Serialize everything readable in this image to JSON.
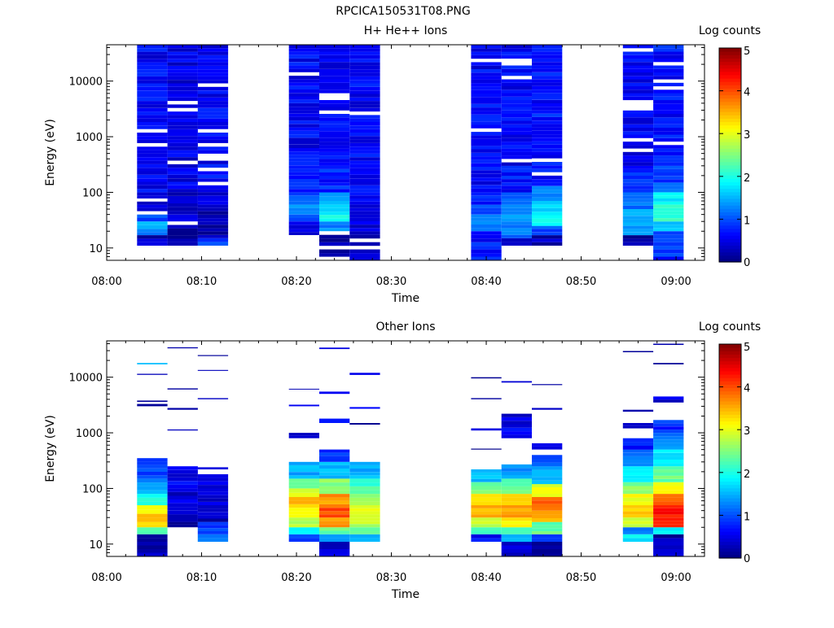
{
  "figure_title": "RPCICA150531T08.PNG",
  "chart_data": [
    {
      "type": "heatmap",
      "title": "H+ He++ Ions",
      "xlabel": "Time",
      "ylabel": "Energy (eV)",
      "colorbar_label": "Log counts",
      "x_range": [
        "08:00",
        "09:03"
      ],
      "xticks": [
        "08:00",
        "08:10",
        "08:20",
        "08:30",
        "08:40",
        "08:50",
        "09:00"
      ],
      "y_scale": "log",
      "y_range": [
        6,
        45000
      ],
      "yticks": [
        "10",
        "100",
        "1000",
        "10000"
      ],
      "colorbar_range": [
        0,
        5
      ],
      "colorbar_ticks": [
        "0",
        "1",
        "2",
        "3",
        "4",
        "5"
      ],
      "columns": [
        {
          "t0": "08:03.2",
          "t1": "08:06.4",
          "emin": 11,
          "bands": [
            [
              11,
              17,
              0.3
            ],
            [
              17,
              22,
              1.2
            ],
            [
              22,
              30,
              1.5
            ],
            [
              30,
              40,
              1.0
            ],
            [
              40,
              60,
              0.6
            ],
            [
              60,
              100,
              0.5
            ],
            [
              100,
              45000,
              0.6
            ]
          ]
        },
        {
          "t0": "08:06.4",
          "t1": "08:09.6",
          "emin": 11,
          "bands": [
            [
              11,
              30,
              0.3
            ],
            [
              30,
              40,
              0.5
            ],
            [
              40,
              100,
              0.4
            ],
            [
              100,
              45000,
              0.5
            ]
          ]
        },
        {
          "t0": "08:09.6",
          "t1": "08:12.8",
          "emin": 11,
          "bands": [
            [
              11,
              15,
              0.9
            ],
            [
              15,
              60,
              0.3
            ],
            [
              60,
              100,
              0.5
            ],
            [
              100,
              45000,
              0.6
            ]
          ]
        },
        {
          "t0": "08:19.2",
          "t1": "08:22.4",
          "emin": 17,
          "bands": [
            [
              17,
              22,
              0.6
            ],
            [
              22,
              30,
              0.5
            ],
            [
              30,
              40,
              0.9
            ],
            [
              40,
              60,
              1.4
            ],
            [
              60,
              100,
              1.0
            ],
            [
              100,
              200,
              0.8
            ],
            [
              200,
              45000,
              0.6
            ]
          ]
        },
        {
          "t0": "08:22.4",
          "t1": "08:25.6",
          "emin": 6,
          "bands": [
            [
              6,
              20,
              0.2
            ],
            [
              20,
              30,
              1.3
            ],
            [
              30,
              45,
              1.9
            ],
            [
              45,
              70,
              1.7
            ],
            [
              70,
              100,
              1.3
            ],
            [
              100,
              300,
              0.8
            ],
            [
              300,
              45000,
              0.6
            ]
          ]
        },
        {
          "t0": "08:25.6",
          "t1": "08:28.8",
          "emin": 6,
          "bands": [
            [
              6,
              20,
              0.3
            ],
            [
              20,
              60,
              0.4
            ],
            [
              60,
              100,
              0.6
            ],
            [
              100,
              45000,
              0.6
            ]
          ]
        },
        {
          "t0": "08:38.4",
          "t1": "08:41.6",
          "emin": 6,
          "bands": [
            [
              6,
              20,
              0.7
            ],
            [
              20,
              40,
              1.3
            ],
            [
              40,
              60,
              1.0
            ],
            [
              60,
              100,
              0.8
            ],
            [
              100,
              250,
              0.6
            ],
            [
              250,
              45000,
              0.6
            ]
          ]
        },
        {
          "t0": "08:41.6",
          "t1": "08:44.8",
          "emin": 11,
          "bands": [
            [
              11,
              15,
              0.3
            ],
            [
              15,
              30,
              1.2
            ],
            [
              30,
              60,
              1.4
            ],
            [
              60,
              100,
              1.0
            ],
            [
              100,
              300,
              0.7
            ],
            [
              300,
              45000,
              0.6
            ]
          ]
        },
        {
          "t0": "08:44.8",
          "t1": "08:48.0",
          "emin": 11,
          "bands": [
            [
              11,
              17,
              0.3
            ],
            [
              17,
              25,
              1.0
            ],
            [
              25,
              45,
              1.9
            ],
            [
              45,
              70,
              1.6
            ],
            [
              70,
              130,
              1.2
            ],
            [
              130,
              45000,
              0.7
            ]
          ]
        },
        {
          "t0": "08:54.4",
          "t1": "08:57.6",
          "emin": 11,
          "bands": [
            [
              11,
              17,
              0.2
            ],
            [
              17,
              25,
              1.4
            ],
            [
              25,
              50,
              1.5
            ],
            [
              50,
              100,
              1.2
            ],
            [
              100,
              300,
              0.8
            ],
            [
              300,
              45000,
              0.6
            ]
          ]
        },
        {
          "t0": "08:57.6",
          "t1": "09:00.8",
          "emin": 6,
          "bands": [
            [
              6,
              20,
              0.8
            ],
            [
              20,
              30,
              1.6
            ],
            [
              30,
              60,
              2.1
            ],
            [
              60,
              100,
              1.8
            ],
            [
              100,
              150,
              1.3
            ],
            [
              150,
              300,
              0.9
            ],
            [
              300,
              45000,
              0.7
            ]
          ]
        }
      ]
    },
    {
      "type": "heatmap",
      "title": "Other Ions",
      "xlabel": "Time",
      "ylabel": "Energy (eV)",
      "colorbar_label": "Log counts",
      "x_range": [
        "08:00",
        "09:03"
      ],
      "xticks": [
        "08:00",
        "08:10",
        "08:20",
        "08:30",
        "08:40",
        "08:50",
        "09:00"
      ],
      "y_scale": "log",
      "y_range": [
        6,
        45000
      ],
      "yticks": [
        "10",
        "100",
        "1000",
        "10000"
      ],
      "colorbar_range": [
        0,
        5
      ],
      "colorbar_ticks": [
        "0",
        "1",
        "2",
        "3",
        "4",
        "5"
      ],
      "columns": [
        {
          "t0": "08:03.2",
          "t1": "08:06.4",
          "emin": 6,
          "bands": [
            [
              6,
              11,
              0.3
            ],
            [
              11,
              15,
              0.3
            ],
            [
              15,
              20,
              2.3
            ],
            [
              20,
              25,
              3.2
            ],
            [
              25,
              35,
              3.6
            ],
            [
              35,
              50,
              3.0
            ],
            [
              50,
              80,
              2.0
            ],
            [
              80,
              150,
              1.4
            ],
            [
              150,
              350,
              1.0
            ],
            [
              3000,
              3300,
              0.3
            ],
            [
              3600,
              3800,
              0.3
            ],
            [
              11000,
              11500,
              0.3
            ],
            [
              17000,
              18000,
              1.6
            ]
          ]
        },
        {
          "t0": "08:06.4",
          "t1": "08:09.6",
          "emin": 20,
          "bands": [
            [
              20,
              25,
              0.3
            ],
            [
              25,
              40,
              0.2
            ],
            [
              40,
              100,
              0.4
            ],
            [
              100,
              250,
              0.6
            ],
            [
              1100,
              1150,
              0.3
            ],
            [
              2600,
              2800,
              0.3
            ],
            [
              6000,
              6300,
              0.3
            ],
            [
              33000,
              34500,
              0.3
            ]
          ]
        },
        {
          "t0": "08:09.6",
          "t1": "08:12.8",
          "emin": 11,
          "bands": [
            [
              11,
              15,
              1.1
            ],
            [
              15,
              25,
              0.8
            ],
            [
              25,
              50,
              0.3
            ],
            [
              50,
              100,
              0.4
            ],
            [
              100,
              180,
              0.6
            ],
            [
              220,
              240,
              0.3
            ],
            [
              4000,
              4200,
              0.3
            ],
            [
              13000,
              13500,
              0.3
            ],
            [
              24000,
              25000,
              0.3
            ]
          ]
        },
        {
          "t0": "08:19.2",
          "t1": "08:22.4",
          "emin": 11,
          "bands": [
            [
              11,
              15,
              1.0
            ],
            [
              15,
              20,
              2.0
            ],
            [
              20,
              30,
              2.7
            ],
            [
              30,
              45,
              3.0
            ],
            [
              45,
              70,
              3.4
            ],
            [
              70,
              100,
              3.0
            ],
            [
              100,
              150,
              2.3
            ],
            [
              150,
              300,
              1.5
            ],
            [
              800,
              1000,
              0.4
            ],
            [
              3000,
              3200,
              0.8
            ],
            [
              6000,
              6200,
              0.3
            ]
          ]
        },
        {
          "t0": "08:22.4",
          "t1": "08:25.6",
          "emin": 6,
          "bands": [
            [
              6,
              11,
              0.3
            ],
            [
              11,
              15,
              1.5
            ],
            [
              15,
              20,
              2.4
            ],
            [
              20,
              30,
              3.7
            ],
            [
              30,
              45,
              4.0
            ],
            [
              45,
              80,
              3.6
            ],
            [
              80,
              150,
              2.5
            ],
            [
              150,
              300,
              1.5
            ],
            [
              300,
              500,
              0.9
            ],
            [
              1500,
              1800,
              0.5
            ],
            [
              5000,
              5500,
              0.4
            ],
            [
              32000,
              34000,
              0.3
            ]
          ]
        },
        {
          "t0": "08:25.6",
          "t1": "08:28.8",
          "emin": 11,
          "bands": [
            [
              11,
              15,
              1.5
            ],
            [
              15,
              20,
              2.3
            ],
            [
              20,
              30,
              2.8
            ],
            [
              30,
              50,
              3.0
            ],
            [
              50,
              80,
              2.7
            ],
            [
              80,
              150,
              2.2
            ],
            [
              150,
              300,
              1.5
            ],
            [
              1400,
              1500,
              0.3
            ],
            [
              2700,
              2900,
              0.6
            ],
            [
              11000,
              12000,
              0.3
            ]
          ]
        },
        {
          "t0": "08:38.4",
          "t1": "08:41.6",
          "emin": 11,
          "bands": [
            [
              11,
              15,
              0.6
            ],
            [
              15,
              20,
              2.1
            ],
            [
              20,
              30,
              2.9
            ],
            [
              30,
              50,
              3.5
            ],
            [
              50,
              80,
              3.3
            ],
            [
              80,
              130,
              2.5
            ],
            [
              130,
              220,
              1.5
            ],
            [
              500,
              520,
              0.3
            ],
            [
              1100,
              1200,
              0.3
            ],
            [
              4000,
              4200,
              0.3
            ],
            [
              9500,
              10000,
              0.3
            ]
          ]
        },
        {
          "t0": "08:41.6",
          "t1": "08:44.8",
          "emin": 6,
          "bands": [
            [
              6,
              11,
              0.3
            ],
            [
              11,
              15,
              1.6
            ],
            [
              15,
              20,
              2.3
            ],
            [
              20,
              30,
              3.2
            ],
            [
              30,
              50,
              3.6
            ],
            [
              50,
              80,
              3.4
            ],
            [
              80,
              150,
              2.4
            ],
            [
              150,
              270,
              1.4
            ],
            [
              800,
              2200,
              0.5
            ],
            [
              8000,
              8500,
              0.3
            ]
          ]
        },
        {
          "t0": "08:44.8",
          "t1": "08:48.0",
          "emin": 6,
          "bands": [
            [
              6,
              11,
              0.3
            ],
            [
              11,
              15,
              1.0
            ],
            [
              15,
              25,
              2.4
            ],
            [
              25,
              40,
              3.6
            ],
            [
              40,
              70,
              3.9
            ],
            [
              70,
              120,
              3.0
            ],
            [
              120,
              250,
              1.5
            ],
            [
              250,
              400,
              0.9
            ],
            [
              500,
              650,
              0.3
            ],
            [
              2600,
              2800,
              0.3
            ],
            [
              7200,
              7500,
              0.3
            ]
          ]
        },
        {
          "t0": "08:54.4",
          "t1": "08:57.6",
          "emin": 11,
          "bands": [
            [
              11,
              15,
              1.8
            ],
            [
              15,
              20,
              1.3
            ],
            [
              20,
              30,
              2.8
            ],
            [
              30,
              50,
              3.3
            ],
            [
              50,
              80,
              3.1
            ],
            [
              80,
              130,
              2.5
            ],
            [
              130,
              250,
              1.8
            ],
            [
              250,
              500,
              1.2
            ],
            [
              500,
              800,
              0.8
            ],
            [
              1200,
              1500,
              0.4
            ],
            [
              2400,
              2600,
              0.3
            ],
            [
              28000,
              29500,
              0.3
            ]
          ]
        },
        {
          "t0": "08:57.6",
          "t1": "09:00.8",
          "emin": 6,
          "bands": [
            [
              6,
              11,
              0.3
            ],
            [
              11,
              15,
              0.2
            ],
            [
              15,
              20,
              1.9
            ],
            [
              20,
              30,
              4.1
            ],
            [
              30,
              50,
              4.3
            ],
            [
              50,
              80,
              3.9
            ],
            [
              80,
              130,
              3.2
            ],
            [
              130,
              250,
              2.4
            ],
            [
              250,
              500,
              1.8
            ],
            [
              500,
              1000,
              1.3
            ],
            [
              1000,
              1700,
              0.8
            ],
            [
              3500,
              4500,
              0.4
            ],
            [
              17000,
              18000,
              0.3
            ],
            [
              38000,
              40000,
              0.3
            ]
          ]
        }
      ]
    }
  ]
}
